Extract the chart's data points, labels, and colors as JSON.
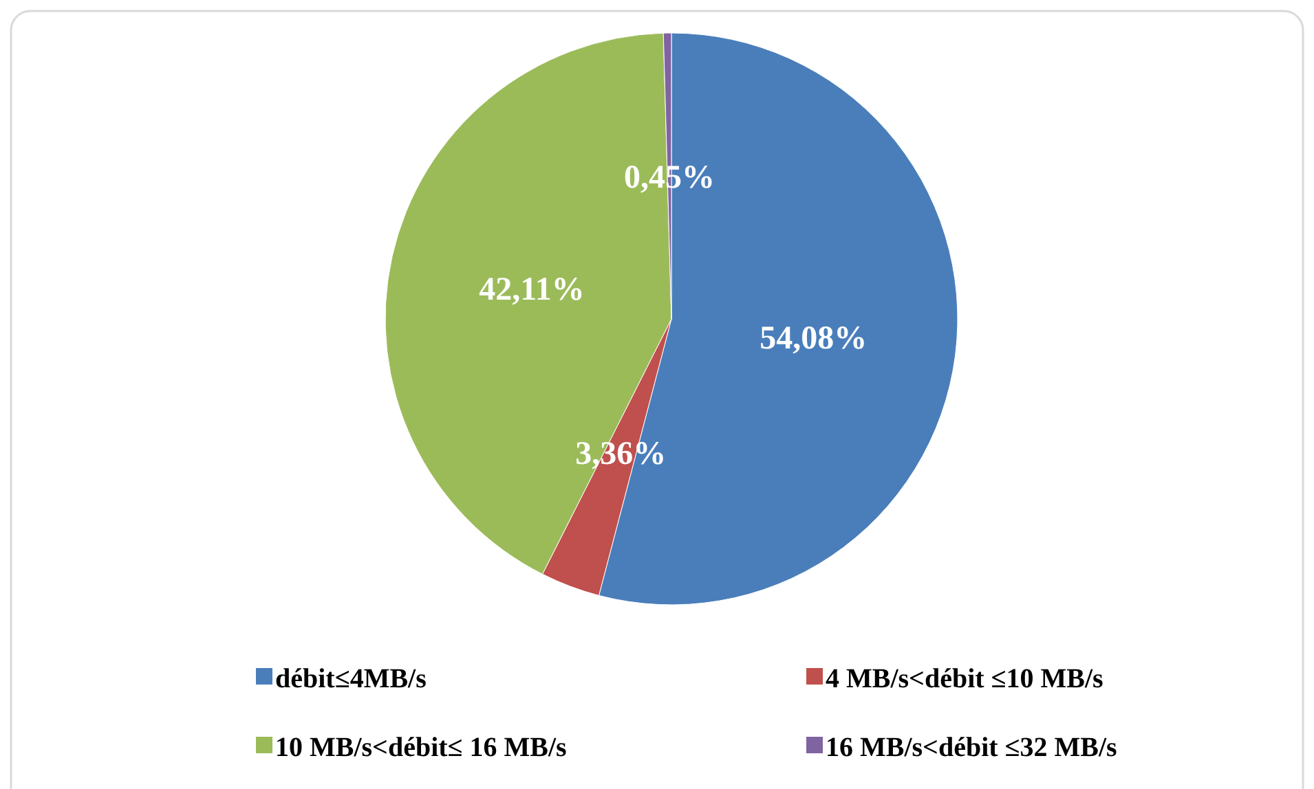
{
  "chart_data": {
    "type": "pie",
    "categories": [
      "débit≤4MB/s",
      "4 MB/s<débit ≤10 MB/s",
      "10 MB/s<débit≤ 16 MB/s",
      "16 MB/s<débit ≤32 MB/s"
    ],
    "values": [
      54.08,
      3.36,
      42.11,
      0.45
    ],
    "colors": [
      "#4a7ebb",
      "#c0504d",
      "#9bbb59",
      "#8064a2"
    ],
    "value_labels": [
      "54,08%",
      "3,36%",
      "42,11%",
      "0,45%"
    ],
    "legend": "bottom"
  }
}
